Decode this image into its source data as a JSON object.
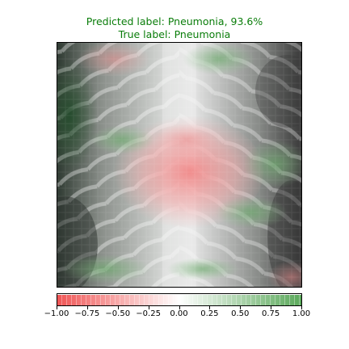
{
  "title": {
    "predicted": "Predicted label: Pneumonia, 93.6%",
    "true_label": "True label: Pneumonia",
    "color": "#0a7d0a"
  },
  "colorbar": {
    "ticks": [
      "−1.00",
      "−0.75",
      "−0.50",
      "−0.25",
      "0.00",
      "0.25",
      "0.50",
      "0.75",
      "1.00"
    ],
    "min": -1.0,
    "max": 1.0,
    "negative_color": "#f03c3c",
    "positive_color": "#3c9a3c"
  }
}
